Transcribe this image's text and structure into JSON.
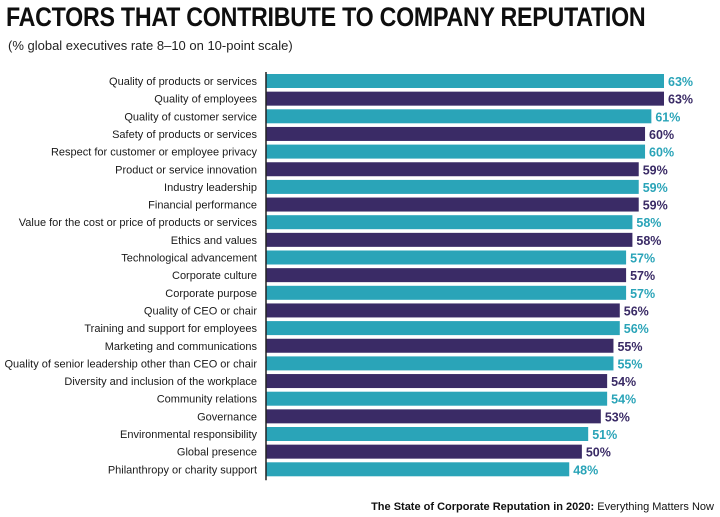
{
  "header": {
    "title": "FACTORS THAT CONTRIBUTE TO COMPANY REPUTATION",
    "subtitle": "(% global executives rate 8–10 on 10-point scale)"
  },
  "source": {
    "bold": "The State of Corporate Reputation in 2020:",
    "rest": " Everything Matters Now"
  },
  "colors": {
    "teal": "#2aa4b8",
    "purple": "#3a2b66",
    "axis": "#222222"
  },
  "chart_data": {
    "type": "bar",
    "orientation": "horizontal",
    "categories": [
      "Quality of products or services",
      "Quality of employees",
      "Quality of customer service",
      "Safety of products or services",
      "Respect for customer or employee privacy",
      "Product or service innovation",
      "Industry leadership",
      "Financial performance",
      "Value for the cost or price of products or services",
      "Ethics and values",
      "Technological advancement",
      "Corporate culture",
      "Corporate purpose",
      "Quality of CEO or chair",
      "Training and support for employees",
      "Marketing and communications",
      "Quality of senior leadership other than CEO or chair",
      "Diversity and inclusion of the workplace",
      "Community relations",
      "Governance",
      "Environmental responsibility",
      "Global presence",
      "Philanthropy or charity support"
    ],
    "values": [
      63,
      63,
      61,
      60,
      60,
      59,
      59,
      59,
      58,
      58,
      57,
      57,
      57,
      56,
      56,
      55,
      55,
      54,
      54,
      53,
      51,
      50,
      48
    ],
    "data_labels": [
      "63%",
      "63%",
      "61%",
      "60%",
      "60%",
      "59%",
      "59%",
      "59%",
      "58%",
      "58%",
      "57%",
      "57%",
      "57%",
      "56%",
      "56%",
      "55%",
      "55%",
      "54%",
      "54%",
      "53%",
      "51%",
      "50%",
      "48%"
    ],
    "bar_colors": [
      "teal",
      "purple",
      "teal",
      "purple",
      "teal",
      "purple",
      "teal",
      "purple",
      "teal",
      "purple",
      "teal",
      "purple",
      "teal",
      "purple",
      "teal",
      "purple",
      "teal",
      "purple",
      "teal",
      "purple",
      "teal",
      "purple",
      "teal"
    ],
    "xlim": [
      0,
      63
    ]
  }
}
